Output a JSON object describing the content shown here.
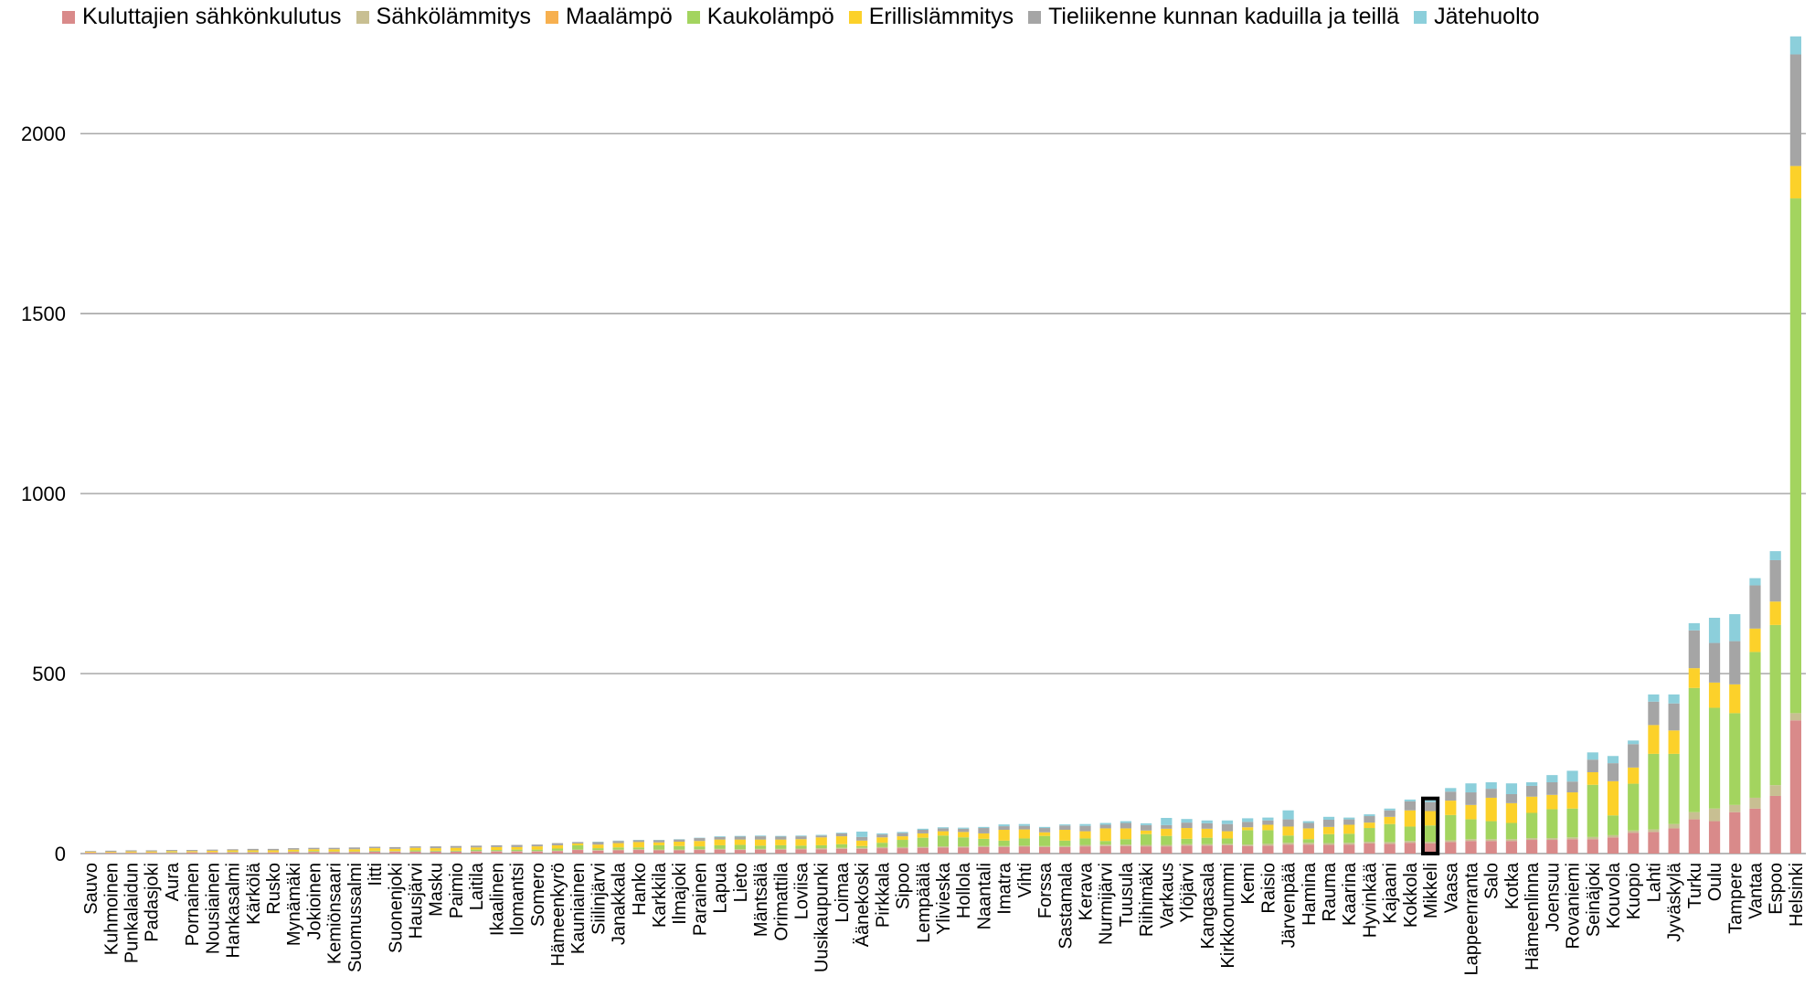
{
  "chart_data": {
    "type": "bar",
    "stacked": true,
    "categories": [
      "Sauvo",
      "Kuhmoinen",
      "Punkalaidun",
      "Padasjoki",
      "Aura",
      "Pornainen",
      "Nousiainen",
      "Hankasalmi",
      "Kärkölä",
      "Rusko",
      "Mynämäki",
      "Jokioinen",
      "Kemiönsaari",
      "Suomussalmi",
      "Iitti",
      "Suonenjoki",
      "Hausjärvi",
      "Masku",
      "Paimio",
      "Laitila",
      "Ikaalinen",
      "Ilomantsi",
      "Somero",
      "Hämeenkyrö",
      "Kauniainen",
      "Siilinjärvi",
      "Janakkala",
      "Hanko",
      "Karkkila",
      "Ilmajoki",
      "Parainen",
      "Lapua",
      "Lieto",
      "Mäntsälä",
      "Orimattila",
      "Loviisa",
      "Uusikaupunki",
      "Loimaa",
      "Äänekoski",
      "Pirkkala",
      "Sipoo",
      "Lempäälä",
      "Ylivieska",
      "Hollola",
      "Naantali",
      "Imatra",
      "Vihti",
      "Forssa",
      "Sastamala",
      "Kerava",
      "Nurmijärvi",
      "Tuusula",
      "Riihimäki",
      "Varkaus",
      "Ylöjärvi",
      "Kangasala",
      "Kirkkonummi",
      "Kemi",
      "Raisio",
      "Järvenpää",
      "Hamina",
      "Rauma",
      "Kaarina",
      "Hyvinkää",
      "Kajaani",
      "Kokkola",
      "Mikkeli",
      "Vaasa",
      "Lappeenranta",
      "Salo",
      "Kotka",
      "Hämeenlinna",
      "Joensuu",
      "Rovaniemi",
      "Seinäjoki",
      "Kouvola",
      "Kuopio",
      "Lahti",
      "Jyväskylä",
      "Turku",
      "Oulu",
      "Tampere",
      "Vantaa",
      "Espoo",
      "Helsinki"
    ],
    "series": [
      {
        "name": "Kuluttajien sähkönkulutus",
        "values": [
          2,
          2,
          2,
          2,
          2,
          3,
          3,
          3,
          3,
          3,
          4,
          4,
          4,
          4,
          5,
          5,
          5,
          5,
          5,
          6,
          6,
          6,
          6,
          7,
          10,
          8,
          9,
          10,
          9,
          9,
          10,
          11,
          10,
          11,
          11,
          12,
          12,
          13,
          13,
          15,
          15,
          16,
          17,
          17,
          18,
          18,
          19,
          18,
          18,
          20,
          21,
          21,
          20,
          20,
          22,
          22,
          23,
          21,
          22,
          25,
          25,
          24,
          25,
          28,
          27,
          30,
          28,
          32,
          35,
          35,
          35,
          38,
          38,
          40,
          40,
          45,
          58,
          60,
          70,
          95,
          90,
          115,
          125,
          160,
          370
        ]
      },
      {
        "name": "Sähkölämmitys",
        "values": [
          1,
          1,
          1,
          1,
          1,
          1,
          1,
          1,
          1,
          1,
          1,
          1,
          1,
          1,
          1,
          1,
          1,
          1,
          1,
          1,
          1,
          1,
          1,
          1,
          1,
          2,
          2,
          2,
          2,
          2,
          2,
          2,
          2,
          2,
          2,
          2,
          3,
          3,
          3,
          3,
          3,
          3,
          3,
          3,
          3,
          3,
          3,
          3,
          3,
          4,
          4,
          4,
          4,
          4,
          4,
          4,
          4,
          4,
          5,
          5,
          5,
          5,
          5,
          5,
          5,
          5,
          5,
          5,
          5,
          5,
          5,
          5,
          5,
          5,
          6,
          6,
          6,
          7,
          12,
          20,
          35,
          20,
          30,
          30,
          20
        ]
      },
      {
        "name": "Maalämpö",
        "values": [
          0,
          0,
          0,
          0,
          0,
          0,
          0,
          0,
          0,
          0,
          0,
          0,
          0,
          0,
          0,
          0,
          0,
          0,
          0,
          0,
          0,
          0,
          0,
          0,
          0,
          0,
          0,
          0,
          0,
          0,
          0,
          0,
          0,
          0,
          0,
          0,
          0,
          0,
          0,
          0,
          0,
          0,
          0,
          0,
          0,
          0,
          0,
          0,
          0,
          0,
          0,
          0,
          0,
          0,
          0,
          0,
          0,
          0,
          0,
          0,
          0,
          0,
          0,
          0,
          0,
          0,
          0,
          0,
          0,
          0,
          0,
          0,
          0,
          0,
          0,
          0,
          0,
          0,
          0,
          0,
          0,
          0,
          0,
          0,
          0
        ]
      },
      {
        "name": "Kaukolämpö",
        "values": [
          0,
          0,
          0,
          0,
          1,
          0,
          0,
          1,
          1,
          0,
          1,
          2,
          1,
          1,
          2,
          1,
          3,
          2,
          2,
          4,
          3,
          4,
          4,
          6,
          12,
          5,
          6,
          5,
          12,
          10,
          8,
          10,
          12,
          9,
          10,
          8,
          8,
          10,
          5,
          12,
          20,
          25,
          30,
          25,
          20,
          15,
          20,
          28,
          15,
          18,
          10,
          15,
          30,
          25,
          15,
          18,
          15,
          40,
          38,
          20,
          10,
          25,
          25,
          38,
          50,
          40,
          45,
          70,
          55,
          50,
          45,
          70,
          80,
          80,
          145,
          55,
          130,
          210,
          195,
          345,
          280,
          255,
          405,
          445,
          1430
        ]
      },
      {
        "name": "Erillislämmitys",
        "values": [
          2,
          2,
          3,
          3,
          3,
          3,
          4,
          4,
          4,
          5,
          5,
          5,
          6,
          6,
          7,
          6,
          7,
          7,
          8,
          6,
          8,
          7,
          9,
          9,
          5,
          10,
          12,
          15,
          8,
          12,
          15,
          16,
          15,
          17,
          16,
          18,
          22,
          22,
          15,
          15,
          10,
          12,
          12,
          15,
          15,
          30,
          25,
          10,
          30,
          20,
          35,
          30,
          10,
          20,
          30,
          25,
          20,
          8,
          15,
          25,
          30,
          20,
          25,
          15,
          20,
          45,
          40,
          40,
          40,
          65,
          55,
          45,
          40,
          45,
          35,
          95,
          45,
          80,
          65,
          55,
          70,
          80,
          65,
          65,
          90
        ]
      },
      {
        "name": "Tieliikenne kunnan kaduilla ja teillä",
        "values": [
          2,
          3,
          3,
          3,
          3,
          3,
          3,
          3,
          4,
          4,
          4,
          4,
          4,
          5,
          4,
          5,
          4,
          5,
          5,
          5,
          5,
          6,
          5,
          6,
          4,
          7,
          6,
          5,
          6,
          6,
          8,
          7,
          8,
          9,
          8,
          8,
          5,
          8,
          10,
          8,
          9,
          10,
          8,
          9,
          15,
          10,
          10,
          12,
          12,
          15,
          10,
          15,
          15,
          10,
          15,
          15,
          20,
          15,
          12,
          20,
          15,
          20,
          15,
          18,
          18,
          25,
          25,
          25,
          35,
          25,
          25,
          30,
          35,
          30,
          35,
          50,
          65,
          65,
          75,
          105,
          110,
          120,
          120,
          115,
          310
        ]
      },
      {
        "name": "Jätehuolto",
        "values": [
          0,
          0,
          0,
          0,
          0,
          0,
          0,
          0,
          0,
          0,
          0,
          0,
          0,
          0,
          0,
          0,
          0,
          0,
          0,
          0,
          0,
          0,
          0,
          0,
          0,
          1,
          1,
          1,
          1,
          1,
          1,
          2,
          2,
          2,
          2,
          2,
          2,
          2,
          15,
          3,
          3,
          3,
          3,
          3,
          3,
          5,
          5,
          3,
          3,
          5,
          5,
          5,
          5,
          20,
          10,
          8,
          10,
          10,
          8,
          25,
          5,
          8,
          5,
          5,
          5,
          5,
          5,
          10,
          25,
          18,
          30,
          10,
          20,
          30,
          20,
          20,
          10,
          20,
          25,
          20,
          70,
          75,
          20,
          25,
          50
        ]
      }
    ],
    "colors": [
      "#d98a8a",
      "#c8bf92",
      "#f7b04f",
      "#a3d45f",
      "#fcd12a",
      "#a5a5a5",
      "#8ccfdb"
    ],
    "highlight_category": "Mikkeli",
    "highlight_color": "#000000",
    "ylim": [
      0,
      2300
    ],
    "yticks": [
      0,
      500,
      1000,
      1500,
      2000
    ],
    "grid": true,
    "legend_position": "top"
  }
}
